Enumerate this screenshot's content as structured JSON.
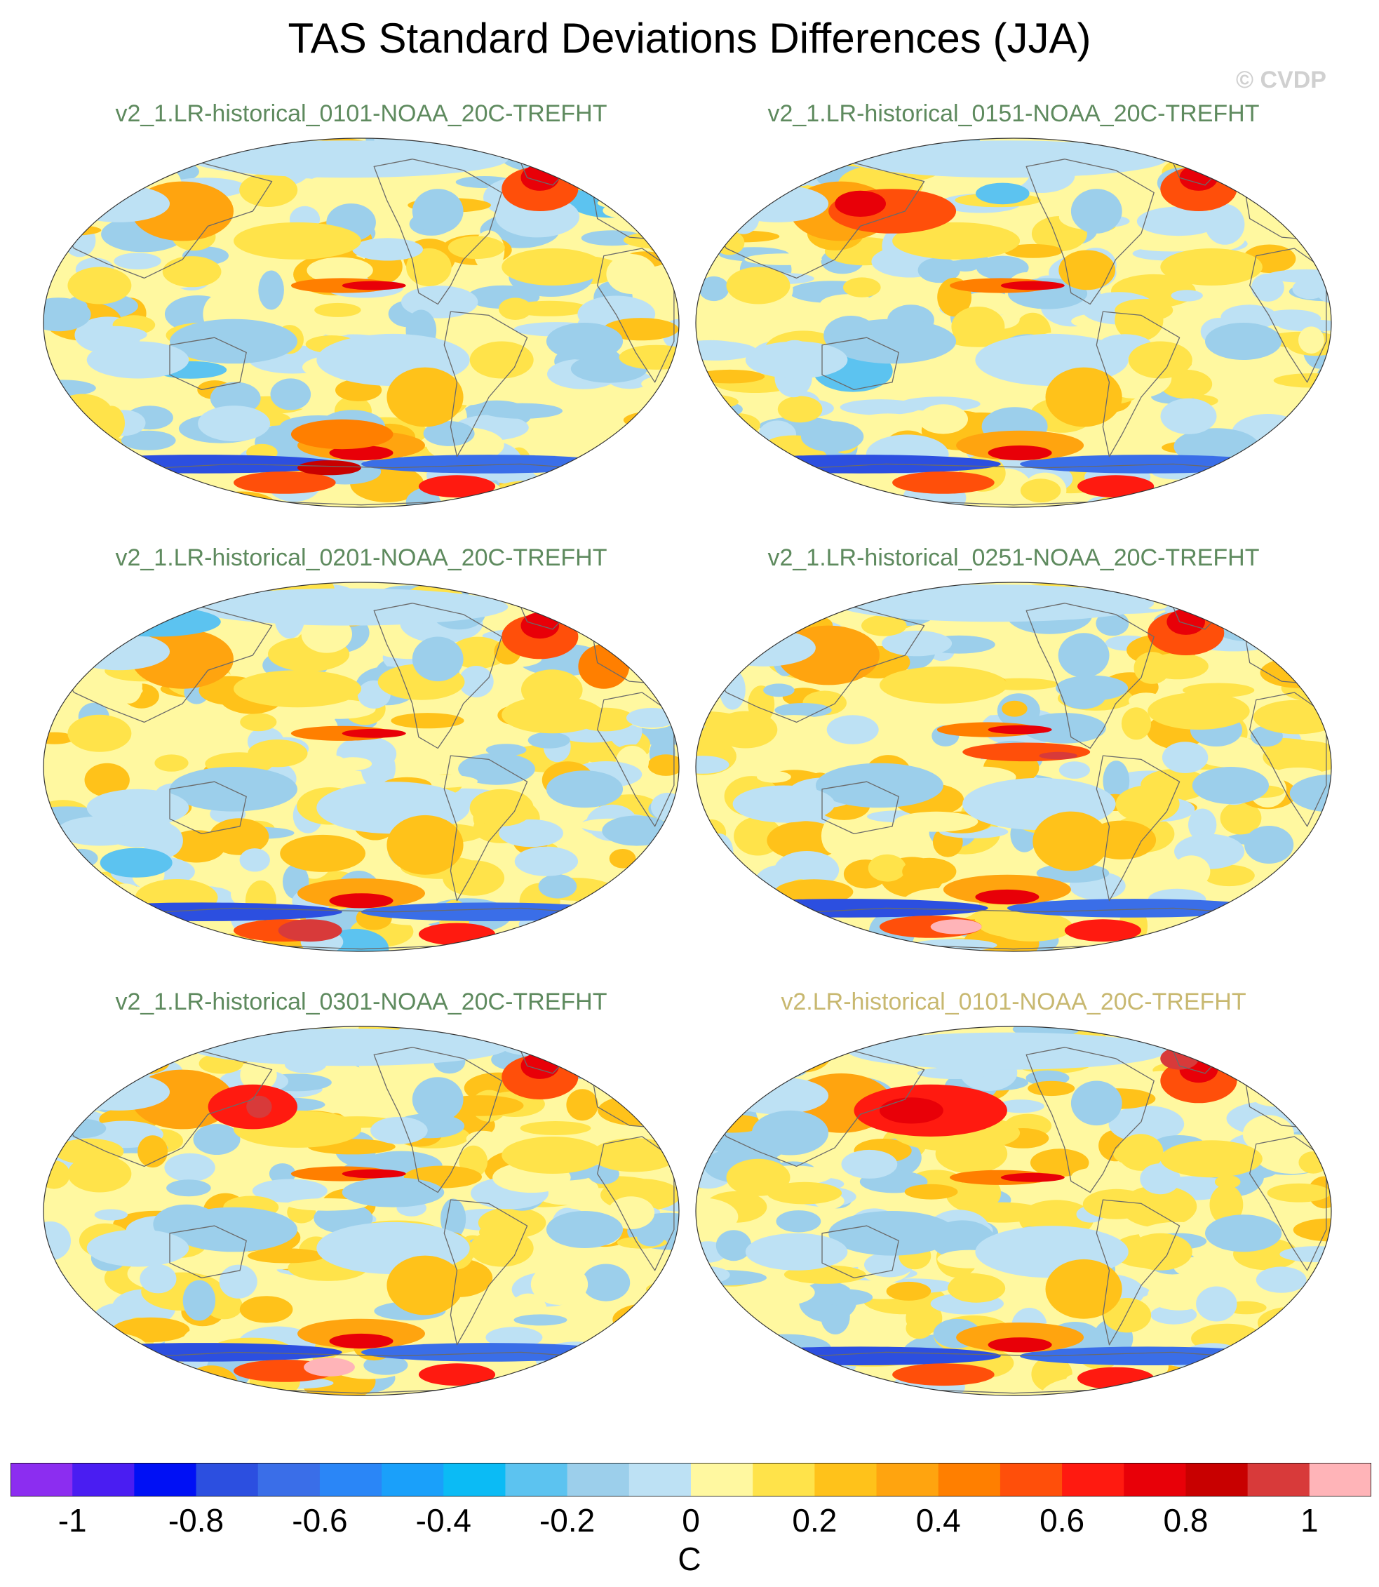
{
  "title": "TAS Standard Deviations Differences (JJA)",
  "watermark": "© CVDP",
  "chart_data": {
    "type": "heatmap",
    "projection": "robinson-like global map, Pacific-centred",
    "panels": [
      {
        "title": "v2_1.LR-historical_0101-NOAA_20C-TREFHT",
        "title_color": "#5e8a5e"
      },
      {
        "title": "v2_1.LR-historical_0151-NOAA_20C-TREFHT",
        "title_color": "#5e8a5e"
      },
      {
        "title": "v2_1.LR-historical_0201-NOAA_20C-TREFHT",
        "title_color": "#5e8a5e"
      },
      {
        "title": "v2_1.LR-historical_0251-NOAA_20C-TREFHT",
        "title_color": "#5e8a5e"
      },
      {
        "title": "v2_1.LR-historical_0301-NOAA_20C-TREFHT",
        "title_color": "#5e8a5e"
      },
      {
        "title": "v2.LR-historical_0101-NOAA_20C-TREFHT",
        "title_color": "#c8b870"
      }
    ],
    "colorbar": {
      "unit": "C",
      "range": [
        -1.1,
        1.1
      ],
      "levels": [
        -1,
        -0.9,
        -0.8,
        -0.7,
        -0.6,
        -0.5,
        -0.4,
        -0.3,
        -0.2,
        -0.1,
        0,
        0.1,
        0.2,
        0.3,
        0.4,
        0.5,
        0.6,
        0.7,
        0.8,
        0.9,
        1
      ],
      "tick_labels": [
        "-1",
        "-0.8",
        "-0.6",
        "-0.4",
        "-0.2",
        "0",
        "0.2",
        "0.4",
        "0.6",
        "0.8",
        "1"
      ],
      "tick_values": [
        -1,
        -0.8,
        -0.6,
        -0.4,
        -0.2,
        0,
        0.2,
        0.4,
        0.6,
        0.8,
        1
      ],
      "colors": [
        "#8c2df0",
        "#4a1df2",
        "#0010f5",
        "#2c4fe0",
        "#3a6ee8",
        "#2a86f7",
        "#1aa0fa",
        "#0bbbf5",
        "#5cc3f0",
        "#9ccfeb",
        "#bde1f4",
        "#fff8a0",
        "#ffe34a",
        "#ffc21a",
        "#ffa40f",
        "#ff7f00",
        "#ff4f0a",
        "#ff1a10",
        "#e80008",
        "#c80000",
        "#d83a3a",
        "#ffb4b8"
      ]
    },
    "notable_features": [
      "Strong negative (blue/purple) band along Southern Ocean sea-ice edge",
      "Positive (orange/red) maxima over East Siberian/Bering sector and Canadian Arctic/Greenland",
      "Positive anomaly strip in central-eastern equatorial Pacific",
      "Positive (red/pink) patches over Antarctica",
      "Negative (light blue) areas over tropical Indian Ocean, Australia and South Pacific"
    ]
  }
}
